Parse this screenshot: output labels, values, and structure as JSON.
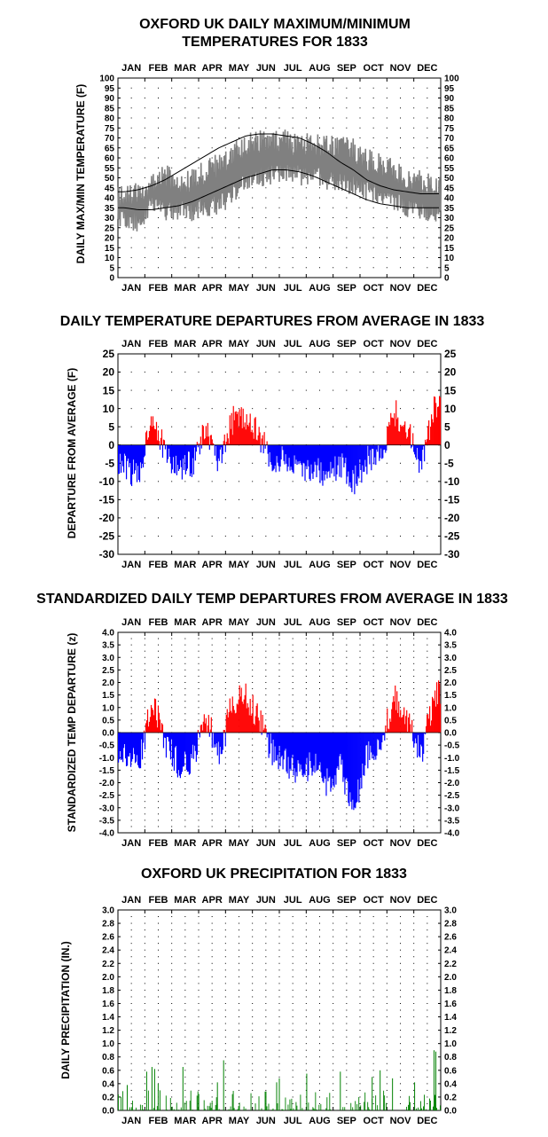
{
  "months": [
    "JAN",
    "FEB",
    "MAR",
    "APR",
    "MAY",
    "JUN",
    "JUL",
    "AUG",
    "SEP",
    "OCT",
    "NOV",
    "DEC"
  ],
  "colors": {
    "temp": "#808080",
    "avg": "#000000",
    "above": "#ff0000",
    "below": "#0000ff",
    "precip": "#008000",
    "grid": "#000000"
  },
  "chart_data": [
    {
      "type": "line",
      "title_line1": "OXFORD UK DAILY MAXIMUM/MINIMUM",
      "title_line2": "TEMPERATURES FOR 1833",
      "ylabel": "DAILY MAX/MIN TEMPERATURE (F)",
      "xlabel": "",
      "ylim": [
        0,
        100
      ],
      "ytick_step": 5,
      "yticks": [
        "0",
        "5",
        "10",
        "15",
        "20",
        "25",
        "30",
        "35",
        "40",
        "45",
        "50",
        "55",
        "60",
        "65",
        "70",
        "75",
        "80",
        "85",
        "90",
        "95",
        "100"
      ],
      "grid": true,
      "series": [
        {
          "role": "daily-max",
          "color": "#808080",
          "values_by_half_month": [
            40,
            43,
            48,
            52,
            45,
            49,
            53,
            57,
            62,
            66,
            68,
            67,
            69,
            66,
            67,
            66,
            65,
            64,
            59,
            58,
            53,
            50,
            48,
            45
          ]
        },
        {
          "role": "daily-min",
          "color": "#808080",
          "values_by_half_month": [
            29,
            28,
            36,
            33,
            34,
            33,
            35,
            36,
            42,
            47,
            50,
            52,
            53,
            51,
            52,
            49,
            48,
            46,
            43,
            41,
            38,
            35,
            33,
            33
          ]
        },
        {
          "role": "average-max",
          "color": "#000000",
          "values_by_half_month": [
            43,
            44,
            46,
            49,
            53,
            57,
            61,
            65,
            68,
            71,
            72,
            72,
            71,
            70,
            67,
            63,
            58,
            54,
            49,
            46,
            44,
            43,
            42,
            42
          ]
        },
        {
          "role": "average-min",
          "color": "#000000",
          "values_by_half_month": [
            35,
            34,
            34,
            35,
            36,
            38,
            41,
            44,
            47,
            50,
            52,
            54,
            54,
            53,
            51,
            48,
            45,
            42,
            39,
            37,
            36,
            35,
            35,
            35
          ]
        }
      ]
    },
    {
      "type": "bar",
      "title": "DAILY TEMPERATURE DEPARTURES FROM AVERAGE IN 1833",
      "ylabel": "DEPARTURE FROM AVERAGE (F)",
      "xlabel": "",
      "ylim": [
        -30,
        25
      ],
      "ytick_step": 5,
      "yticks": [
        "25",
        "20",
        "15",
        "10",
        "5",
        "0",
        "-5",
        "-10",
        "-15",
        "-20",
        "-25",
        "-30"
      ],
      "grid": true,
      "colors": {
        "positive": "#ff0000",
        "negative": "#0000ff"
      },
      "departures_by_half_month": [
        -6,
        -9,
        9,
        -3,
        -7,
        -5,
        4,
        -6,
        7,
        8,
        2,
        -5,
        -4,
        -8,
        -6,
        -9,
        -5,
        -10,
        -4,
        -3,
        9,
        4,
        -5,
        10
      ]
    },
    {
      "type": "bar",
      "title": "STANDARDIZED DAILY TEMP DEPARTURES FROM AVERAGE IN 1833",
      "ylabel": "STANDARDIZED TEMP DEPARTURE (z)",
      "xlabel": "",
      "ylim": [
        -4.0,
        4.0
      ],
      "ytick_step": 0.25,
      "yticks": [
        "4.0",
        "3.5",
        "3.0",
        "2.5",
        "2.0",
        "1.5",
        "1.0",
        "0.5",
        "0.0",
        "-0.5",
        "-1.0",
        "-1.5",
        "-2.0",
        "-2.5",
        "-3.0",
        "-3.5",
        "-4.0"
      ],
      "grid": true,
      "colors": {
        "positive": "#ff0000",
        "negative": "#0000ff"
      },
      "z_by_half_month": [
        -0.9,
        -1.4,
        1.4,
        -0.5,
        -1.3,
        -1.1,
        0.7,
        -1.0,
        1.3,
        1.5,
        0.4,
        -0.8,
        -1.2,
        -1.7,
        -1.2,
        -2.0,
        -1.4,
        -3.2,
        -0.9,
        -0.6,
        1.4,
        0.6,
        -1.0,
        1.6
      ]
    },
    {
      "type": "bar",
      "title": "OXFORD UK PRECIPITATION FOR 1833",
      "ylabel": "DAILY PRECIPITATION (IN.)",
      "xlabel": "",
      "ylim": [
        0,
        3.0
      ],
      "ytick_step": 0.1,
      "yticks": [
        "3.0",
        "2.8",
        "2.6",
        "2.4",
        "2.2",
        "2.0",
        "1.8",
        "1.6",
        "1.4",
        "1.2",
        "1.0",
        "0.8",
        "0.6",
        "0.4",
        "0.2",
        "0.0"
      ],
      "grid": true,
      "color": "#008000",
      "notable_daily_totals": [
        {
          "day": 10,
          "value": 0.38
        },
        {
          "day": 32,
          "value": 0.58
        },
        {
          "day": 38,
          "value": 0.65
        },
        {
          "day": 41,
          "value": 0.62
        },
        {
          "day": 45,
          "value": 0.4
        },
        {
          "day": 47,
          "value": 0.3
        },
        {
          "day": 73,
          "value": 0.65
        },
        {
          "day": 112,
          "value": 0.42
        },
        {
          "day": 119,
          "value": 0.75
        },
        {
          "day": 179,
          "value": 0.42
        },
        {
          "day": 182,
          "value": 0.48
        },
        {
          "day": 213,
          "value": 0.55
        },
        {
          "day": 251,
          "value": 0.58
        },
        {
          "day": 287,
          "value": 0.5
        },
        {
          "day": 296,
          "value": 0.6
        },
        {
          "day": 310,
          "value": 0.48
        },
        {
          "day": 335,
          "value": 0.42
        },
        {
          "day": 357,
          "value": 0.9
        },
        {
          "day": 359,
          "value": 0.88
        }
      ]
    }
  ]
}
